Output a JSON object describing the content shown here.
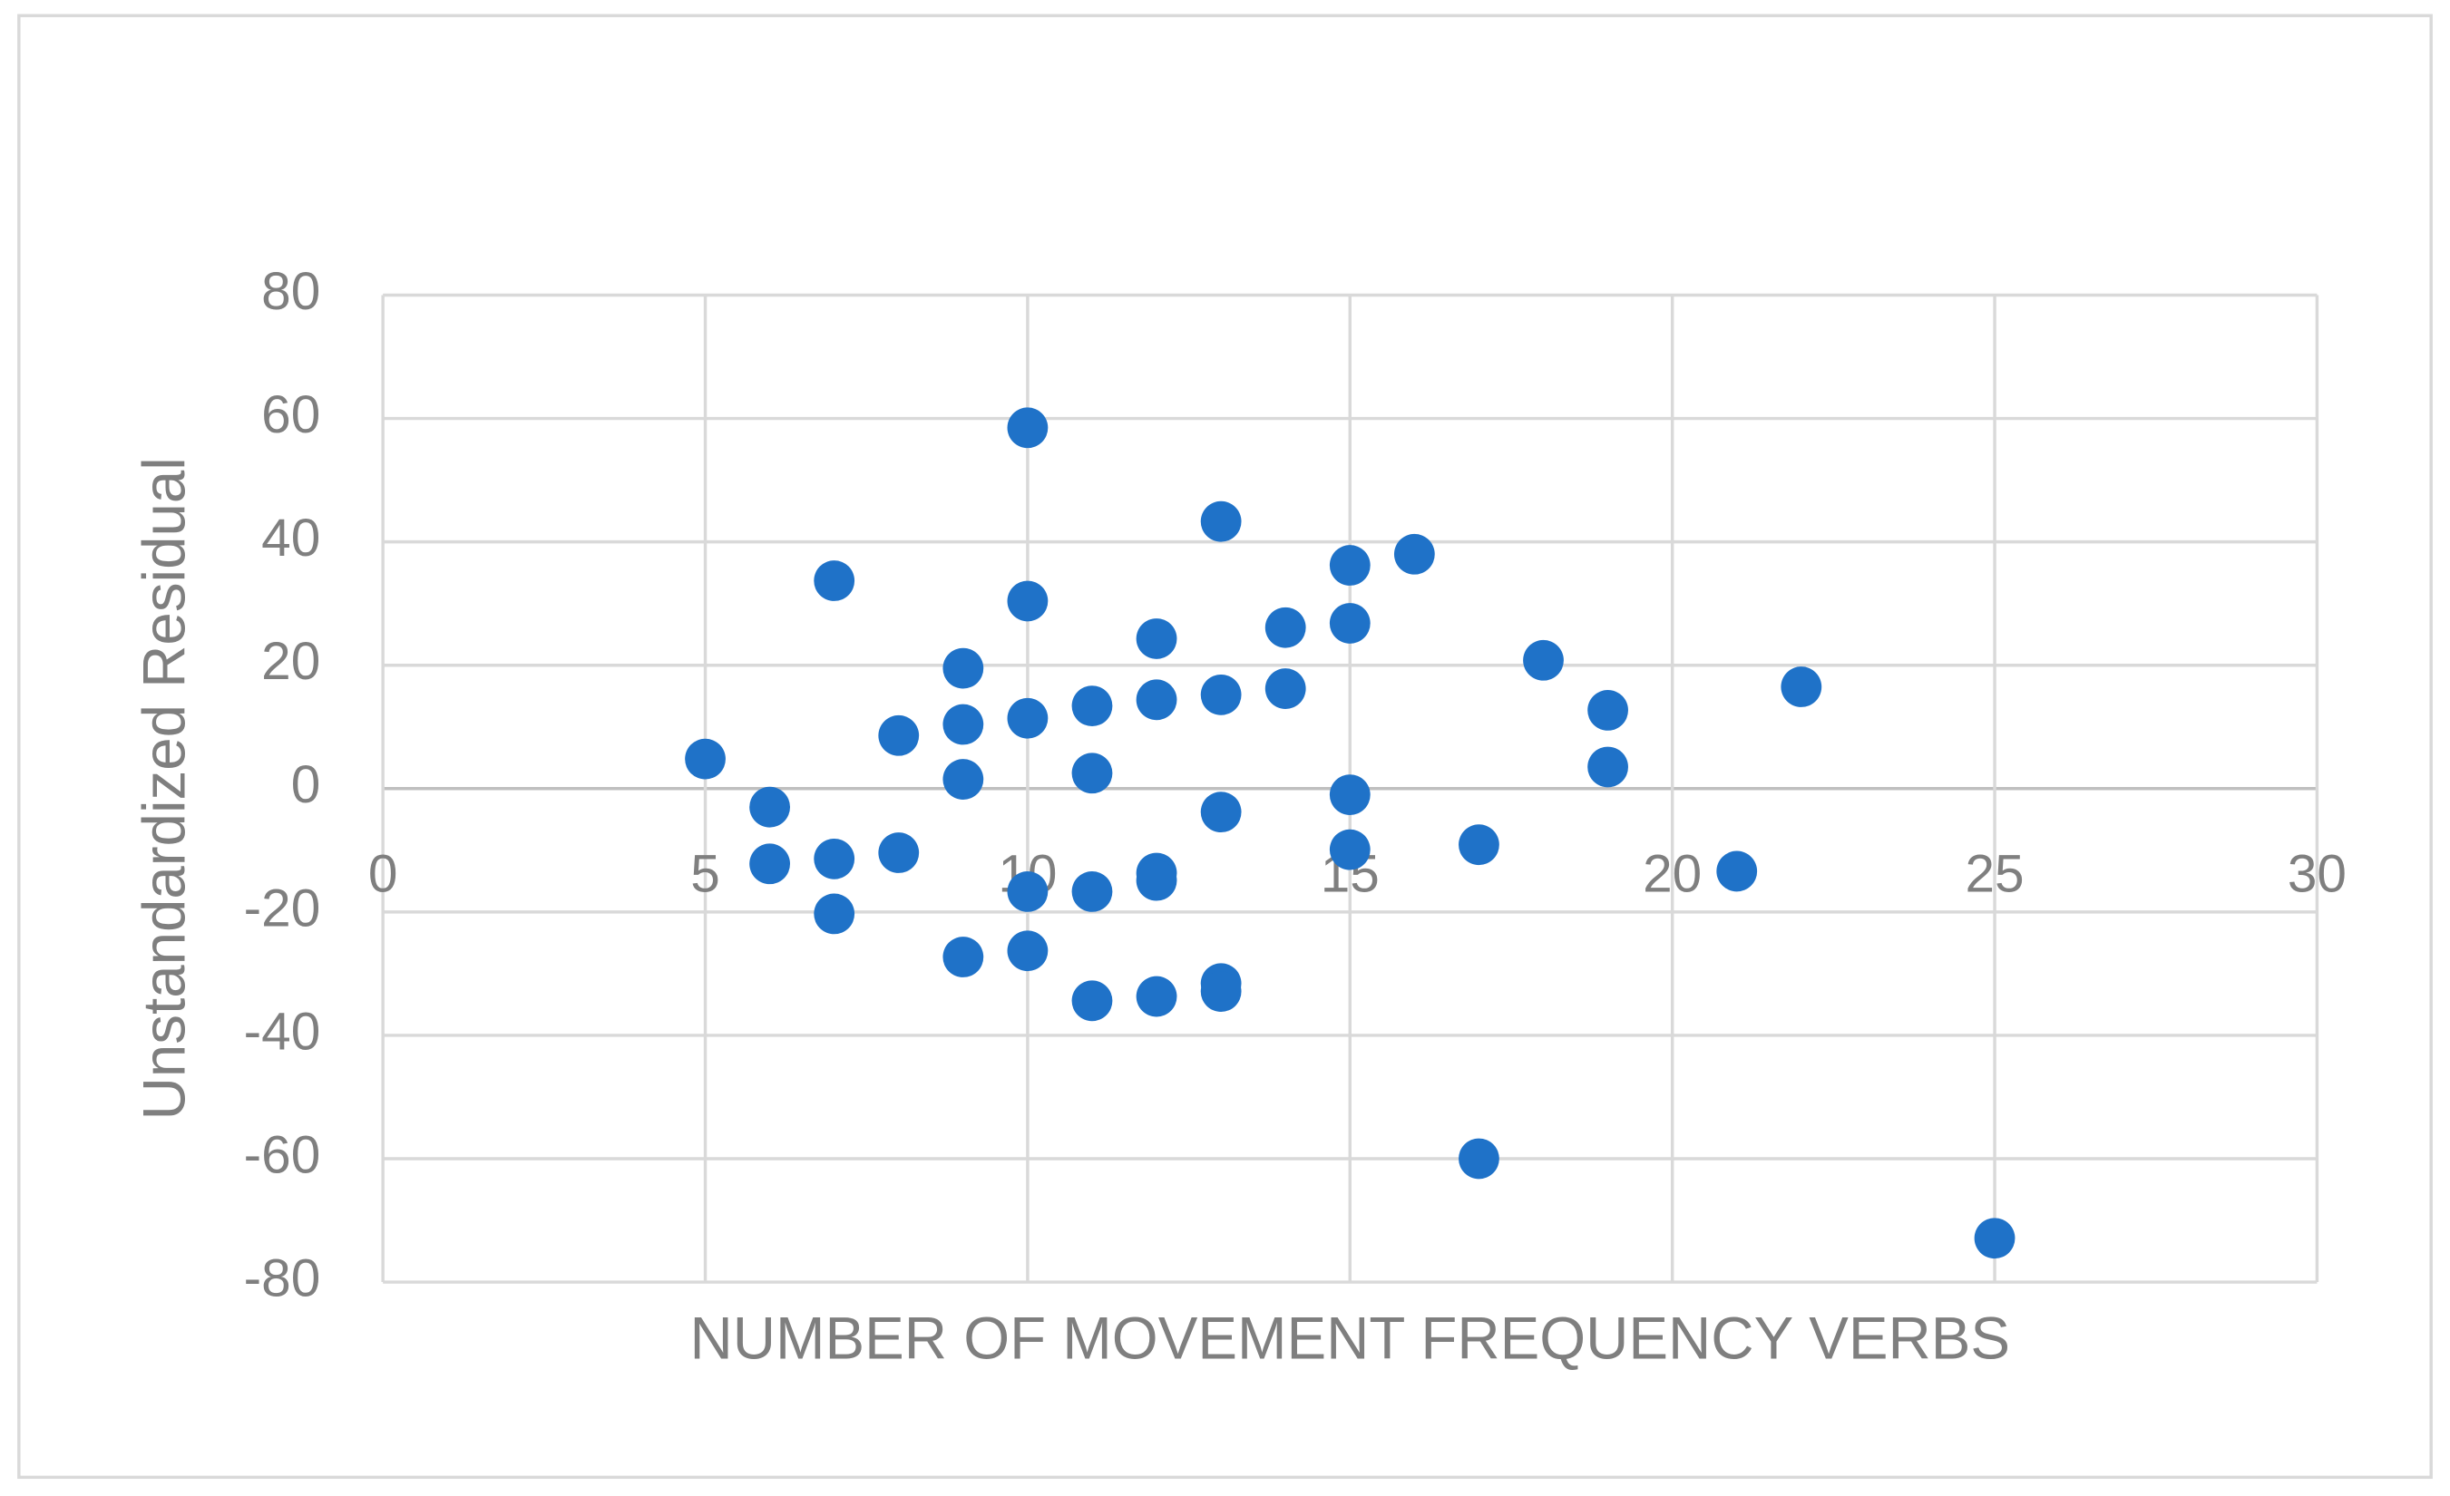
{
  "chart_data": {
    "type": "scatter",
    "x_label": "NUMBER OF MOVEMENT FREQUENCY VERBS",
    "y_label": "Unstandardized Residual",
    "color": "#1f72c8",
    "grid": true,
    "xlim": [
      0,
      30
    ],
    "xticks": [
      0,
      5,
      10,
      15,
      20,
      25,
      30
    ],
    "ylim": [
      -80,
      80
    ],
    "yticks": [
      -80,
      -60,
      -40,
      -20,
      0,
      20,
      40,
      60,
      80
    ],
    "x": [
      5,
      6,
      6,
      7,
      7,
      7,
      8,
      8,
      9,
      9,
      9,
      9,
      10,
      10,
      10,
      10,
      10,
      11,
      11,
      11,
      11,
      12,
      12,
      12,
      12,
      12,
      13,
      13,
      13,
      13,
      13,
      14,
      14,
      15,
      15,
      15,
      15,
      16,
      17,
      17,
      18,
      19,
      19,
      21,
      22,
      25
    ],
    "values": [
      4.8,
      -3.0,
      -12.2,
      33.7,
      -11.4,
      -20.3,
      8.6,
      -10.4,
      19.5,
      10.4,
      1.5,
      -27.3,
      58.5,
      30.4,
      11.4,
      -16.7,
      -26.3,
      13.4,
      2.5,
      -16.7,
      -34.4,
      24.3,
      14.4,
      -13.7,
      -14.9,
      -33.7,
      43.3,
      15.2,
      -3.8,
      -31.6,
      -32.9,
      26.1,
      16.2,
      36.2,
      26.8,
      -1.0,
      -9.9,
      38.0,
      -9.1,
      -60.0,
      20.8,
      12.7,
      3.5,
      -13.4,
      16.5,
      -72.9
    ]
  }
}
